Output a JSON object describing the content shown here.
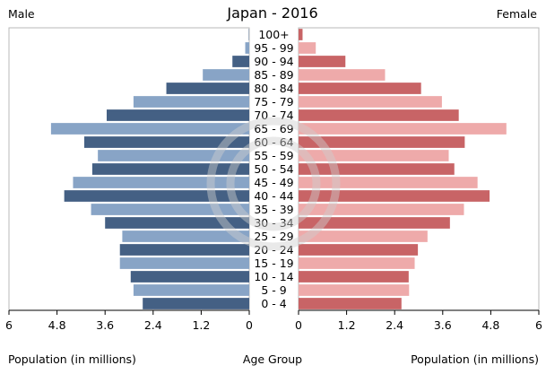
{
  "chart_data": {
    "type": "bar",
    "title": "Japan - 2016",
    "left_label": "Male",
    "right_label": "Female",
    "xlabel_left": "Population (in millions)",
    "xlabel_center": "Age Group",
    "xlabel_right": "Population (in millions)",
    "xlim": [
      0,
      6
    ],
    "x_ticks": [
      6,
      4.8,
      3.6,
      2.4,
      1.2,
      0
    ],
    "x_tick_labels": [
      "6",
      "4.8",
      "3.6",
      "2.4",
      "1.2",
      "0"
    ],
    "grid": false,
    "categories": [
      "100+",
      "95 - 99",
      "90 - 94",
      "85 - 89",
      "80 - 84",
      "75 - 79",
      "70 - 74",
      "65 - 69",
      "60 - 64",
      "55 - 59",
      "50 - 54",
      "45 - 49",
      "40 - 44",
      "35 - 39",
      "30 - 34",
      "25 - 29",
      "20 - 24",
      "15 - 19",
      "10 - 14",
      "5 - 9",
      "0 - 4"
    ],
    "series": [
      {
        "name": "Male",
        "values": [
          0.01,
          0.1,
          0.42,
          1.16,
          2.07,
          2.89,
          3.56,
          4.95,
          4.12,
          3.78,
          3.92,
          4.4,
          4.62,
          3.95,
          3.6,
          3.17,
          3.23,
          3.23,
          2.96,
          2.89,
          2.66
        ],
        "colors": [
          "#446084",
          "#88a4c6"
        ]
      },
      {
        "name": "Female",
        "values": [
          0.1,
          0.43,
          1.17,
          2.16,
          3.06,
          3.58,
          4.0,
          5.19,
          4.15,
          3.75,
          3.89,
          4.47,
          4.77,
          4.13,
          3.78,
          3.22,
          2.98,
          2.9,
          2.75,
          2.76,
          2.57
        ],
        "colors": [
          "#c86466",
          "#eeaaaa"
        ]
      }
    ]
  },
  "colors": {
    "axis": "#000000",
    "watermark": "#cfcfcf"
  },
  "watermark_icon": "copyright-circle-icon"
}
